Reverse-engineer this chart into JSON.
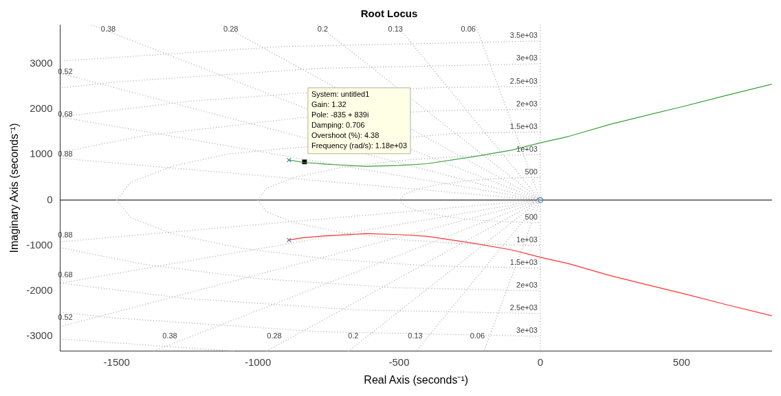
{
  "chart_data": {
    "type": "line",
    "title": "Root Locus",
    "xlabel": "Real Axis (seconds⁻¹)",
    "ylabel": "Imaginary Axis (seconds⁻¹)",
    "xlim": [
      -1700,
      820
    ],
    "xticks": [
      -1500,
      -1000,
      -500,
      0,
      500
    ],
    "ylim": [
      -3330,
      3860
    ],
    "yticks": [
      -3000,
      -2000,
      -1000,
      0,
      1000,
      2000,
      3000
    ],
    "grid": false,
    "legend": false,
    "ref_lines": [
      {
        "axis": "y",
        "value": 0,
        "color": "#000000",
        "line_style": "solid"
      },
      {
        "axis": "x",
        "value": 0,
        "color": "#909090",
        "line_style": "dotted"
      }
    ],
    "series": [
      {
        "color": "#a0a0a0",
        "line_style": "dotted",
        "marker": "none",
        "x": [
          -230,
          0,
          -200
        ],
        "values": [
          3860,
          0,
          -3330
        ]
      },
      {
        "color": "#a0a0a0",
        "line_style": "dotted",
        "marker": "none",
        "x": [
          -510,
          0,
          -440
        ],
        "values": [
          3860,
          0,
          -3330
        ]
      },
      {
        "color": "#a0a0a0",
        "line_style": "dotted",
        "marker": "none",
        "x": [
          -790,
          0,
          -680
        ],
        "values": [
          3860,
          0,
          -3330
        ]
      },
      {
        "color": "#a0a0a0",
        "line_style": "dotted",
        "marker": "none",
        "x": [
          -1130,
          0,
          -970
        ],
        "values": [
          3860,
          0,
          -3330
        ]
      },
      {
        "color": "#a0a0a0",
        "line_style": "dotted",
        "marker": "none",
        "x": [
          -1590,
          0,
          -1370
        ],
        "values": [
          3860,
          0,
          -3330
        ]
      },
      {
        "color": "#a0a0a0",
        "line_style": "dotted",
        "marker": "none",
        "x": [
          -1700,
          0,
          -1700
        ],
        "values": [
          2790,
          0,
          -2790
        ]
      },
      {
        "color": "#a0a0a0",
        "line_style": "dotted",
        "marker": "none",
        "x": [
          -1700,
          0,
          -1700
        ],
        "values": [
          1830,
          0,
          -1830
        ]
      },
      {
        "color": "#a0a0a0",
        "line_style": "dotted",
        "marker": "none",
        "x": [
          -1700,
          0,
          -1700
        ],
        "values": [
          920,
          0,
          -920
        ]
      },
      {
        "color": "#a0a0a0",
        "line_style": "dotted",
        "marker": "none",
        "x": [
          0,
          -130,
          -250,
          -350,
          -430,
          -480,
          -500,
          -480,
          -430,
          -350,
          -250,
          -130,
          0
        ],
        "values": [
          500,
          480,
          430,
          350,
          250,
          130,
          0,
          -130,
          -250,
          -350,
          -430,
          -480,
          -500
        ]
      },
      {
        "color": "#a0a0a0",
        "line_style": "dotted",
        "marker": "none",
        "x": [
          0,
          -260,
          -500,
          -710,
          -870,
          -970,
          -1000,
          -970,
          -870,
          -710,
          -500,
          -260,
          0
        ],
        "values": [
          1000,
          970,
          870,
          710,
          500,
          260,
          0,
          -260,
          -500,
          -710,
          -870,
          -970,
          -1000
        ]
      },
      {
        "color": "#a0a0a0",
        "line_style": "dotted",
        "marker": "none",
        "x": [
          0,
          -300,
          -1100,
          -1300,
          -1450,
          -1500,
          -1450,
          -1300,
          -1060,
          -750,
          -390,
          0
        ],
        "values": [
          1500,
          1470,
          1020,
          750,
          390,
          0,
          -390,
          -750,
          -1060,
          -1300,
          -1450,
          -1500
        ]
      },
      {
        "color": "#a0a0a0",
        "line_style": "dotted",
        "marker": "none",
        "x": [
          0,
          -350,
          -850,
          -1410,
          -1700
        ],
        "values": [
          2000,
          1970,
          1810,
          1410,
          1050
        ]
      },
      {
        "color": "#a0a0a0",
        "line_style": "dotted",
        "marker": "none",
        "x": [
          -1700,
          -1410,
          -1000,
          -520,
          0
        ],
        "values": [
          -1050,
          -1410,
          -1730,
          -1930,
          -2000
        ]
      },
      {
        "color": "#a0a0a0",
        "line_style": "dotted",
        "marker": "none",
        "x": [
          0,
          -350,
          -850,
          -1250,
          -1700
        ],
        "values": [
          2500,
          2480,
          2350,
          2170,
          1830
        ]
      },
      {
        "color": "#a0a0a0",
        "line_style": "dotted",
        "marker": "none",
        "x": [
          -1700,
          -1250,
          -650,
          0
        ],
        "values": [
          -1830,
          -2170,
          -2420,
          -2500
        ]
      },
      {
        "color": "#a0a0a0",
        "line_style": "dotted",
        "marker": "none",
        "x": [
          0,
          -780,
          -1500,
          -1700
        ],
        "values": [
          3000,
          2900,
          2600,
          2470
        ]
      },
      {
        "color": "#a0a0a0",
        "line_style": "dotted",
        "marker": "none",
        "x": [
          -1700,
          -1500,
          -780,
          0
        ],
        "values": [
          -2470,
          -2600,
          -2900,
          -3000
        ]
      },
      {
        "color": "#a0a0a0",
        "line_style": "dotted",
        "marker": "none",
        "x": [
          0,
          -910,
          -1700
        ],
        "values": [
          3500,
          3380,
          3060
        ]
      },
      {
        "color": "#a0a0a0",
        "line_style": "dotted",
        "marker": "none",
        "x": [
          -1700,
          -1080
        ],
        "values": [
          -3060,
          -3330
        ]
      },
      {
        "color": "#3a9e3a",
        "line_style": "solid",
        "marker": "none",
        "x": [
          -890,
          -840,
          -760,
          -700,
          -620,
          -500,
          -400,
          -230,
          -100,
          0,
          100,
          250,
          400,
          500,
          650,
          820
        ],
        "values": [
          880,
          830,
          790,
          770,
          740,
          760,
          800,
          960,
          1100,
          1260,
          1400,
          1670,
          1900,
          2050,
          2290,
          2550
        ]
      },
      {
        "color": "#ff3030",
        "line_style": "solid",
        "marker": "none",
        "x": [
          -890,
          -840,
          -760,
          -700,
          -620,
          -500,
          -400,
          -230,
          -100,
          0,
          100,
          250,
          400,
          500,
          650,
          820
        ],
        "values": [
          -880,
          -830,
          -790,
          -770,
          -740,
          -760,
          -800,
          -960,
          -1100,
          -1260,
          -1400,
          -1670,
          -1900,
          -2050,
          -2290,
          -2550
        ]
      },
      {
        "type": "scatter",
        "color": "#3b88c4",
        "marker": "cross",
        "x": [
          -890,
          -890
        ],
        "values": [
          880,
          -880
        ]
      },
      {
        "type": "scatter",
        "color": "#3b88c4",
        "marker": "circle",
        "x": [
          0
        ],
        "values": [
          0
        ]
      },
      {
        "type": "scatter",
        "color": "#000000",
        "marker": "square",
        "x": [
          -835
        ],
        "values": [
          839
        ]
      }
    ],
    "annotations": [
      {
        "text": "System: untitled1\nGain: 1.32\nPole: -835 + 839i\nDamping: 0.706\nOvershoot (%): 4.38\nFrequency (rad/s): 1.18e+03",
        "x": -835,
        "y": 839
      },
      {
        "text": "0.38",
        "x": -1494,
        "y": 3636
      },
      {
        "text": "0.28",
        "x": -1060,
        "y": 3636
      },
      {
        "text": "0.2",
        "x": -742,
        "y": 3636
      },
      {
        "text": "0.13",
        "x": -477,
        "y": 3636
      },
      {
        "text": "0.06",
        "x": -219,
        "y": 3636
      },
      {
        "text": "0.52",
        "x": -1646,
        "y": 2703
      },
      {
        "text": "0.68",
        "x": -1646,
        "y": 1774
      },
      {
        "text": "0.88",
        "x": -1646,
        "y": 888
      },
      {
        "text": "0.88",
        "x": -1646,
        "y": -888
      },
      {
        "text": "0.68",
        "x": -1646,
        "y": -1774
      },
      {
        "text": "0.52",
        "x": -1646,
        "y": -2703
      },
      {
        "text": "0.38",
        "x": -1276,
        "y": -3106
      },
      {
        "text": "0.28",
        "x": -906,
        "y": -3106
      },
      {
        "text": "0.2",
        "x": -634,
        "y": -3106
      },
      {
        "text": "0.13",
        "x": -407,
        "y": -3106
      },
      {
        "text": "0.06",
        "x": -187,
        "y": -3106
      },
      {
        "text": "3.5e+03",
        "x": 0,
        "y": 3500
      },
      {
        "text": "3e+03",
        "x": 0,
        "y": 3000
      },
      {
        "text": "2.5e+03",
        "x": 0,
        "y": 2500
      },
      {
        "text": "2e+03",
        "x": 0,
        "y": 2000
      },
      {
        "text": "1.5e+03",
        "x": 0,
        "y": 1500
      },
      {
        "text": "1e+03",
        "x": 0,
        "y": 1000
      },
      {
        "text": "500",
        "x": 0,
        "y": 500
      },
      {
        "text": "500",
        "x": 0,
        "y": -500
      },
      {
        "text": "1e+03",
        "x": 0,
        "y": -1000
      },
      {
        "text": "1.5e+03",
        "x": 0,
        "y": -1500
      },
      {
        "text": "2e+03",
        "x": 0,
        "y": -2000
      },
      {
        "text": "2.5e+03",
        "x": 0,
        "y": -2500
      },
      {
        "text": "3e+03",
        "x": 0,
        "y": -3000
      }
    ]
  }
}
